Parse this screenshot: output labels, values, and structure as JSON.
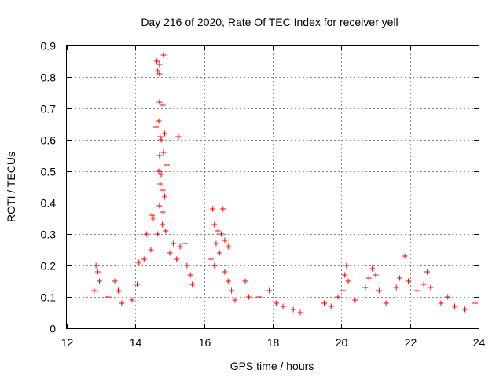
{
  "chart_data": {
    "type": "scatter",
    "title": "Day 216 of 2020, Rate Of TEC Index for receiver yell",
    "xlabel": "GPS time / hours",
    "ylabel": "ROTI / TECUs",
    "xlim": [
      12,
      24
    ],
    "ylim": [
      0,
      0.9
    ],
    "xticks": [
      "12",
      "14",
      "16",
      "18",
      "20",
      "22",
      "24"
    ],
    "yticks": [
      "0",
      "0.1",
      "0.2",
      "0.3",
      "0.4",
      "0.5",
      "0.6",
      "0.7",
      "0.8",
      "0.9"
    ],
    "grid": true,
    "marker": "+",
    "color": "#ff0000",
    "series": [
      {
        "name": "ROTI",
        "points": [
          [
            14.62,
            0.85
          ],
          [
            14.7,
            0.84
          ],
          [
            14.82,
            0.87
          ],
          [
            14.65,
            0.82
          ],
          [
            14.7,
            0.81
          ],
          [
            14.7,
            0.72
          ],
          [
            14.8,
            0.71
          ],
          [
            14.6,
            0.64
          ],
          [
            14.68,
            0.66
          ],
          [
            14.72,
            0.61
          ],
          [
            14.85,
            0.62
          ],
          [
            14.75,
            0.6
          ],
          [
            15.25,
            0.61
          ],
          [
            14.7,
            0.55
          ],
          [
            14.82,
            0.56
          ],
          [
            14.68,
            0.5
          ],
          [
            14.75,
            0.49
          ],
          [
            14.92,
            0.52
          ],
          [
            14.72,
            0.46
          ],
          [
            14.8,
            0.44
          ],
          [
            14.85,
            0.42
          ],
          [
            14.7,
            0.39
          ],
          [
            14.8,
            0.37
          ],
          [
            14.48,
            0.36
          ],
          [
            14.52,
            0.35
          ],
          [
            14.78,
            0.33
          ],
          [
            14.88,
            0.31
          ],
          [
            14.32,
            0.3
          ],
          [
            14.65,
            0.3
          ],
          [
            15.1,
            0.27
          ],
          [
            15.3,
            0.26
          ],
          [
            15.45,
            0.27
          ],
          [
            14.25,
            0.22
          ],
          [
            14.1,
            0.21
          ],
          [
            14.45,
            0.25
          ],
          [
            15.0,
            0.24
          ],
          [
            15.2,
            0.22
          ],
          [
            15.5,
            0.2
          ],
          [
            15.6,
            0.17
          ],
          [
            15.65,
            0.14
          ],
          [
            16.25,
            0.38
          ],
          [
            16.55,
            0.38
          ],
          [
            16.3,
            0.33
          ],
          [
            16.4,
            0.31
          ],
          [
            16.5,
            0.3
          ],
          [
            16.6,
            0.28
          ],
          [
            16.7,
            0.26
          ],
          [
            16.35,
            0.27
          ],
          [
            16.45,
            0.24
          ],
          [
            16.2,
            0.22
          ],
          [
            16.3,
            0.2
          ],
          [
            16.6,
            0.18
          ],
          [
            16.7,
            0.15
          ],
          [
            16.8,
            0.12
          ],
          [
            16.9,
            0.09
          ],
          [
            12.85,
            0.2
          ],
          [
            12.9,
            0.18
          ],
          [
            12.95,
            0.15
          ],
          [
            12.8,
            0.12
          ],
          [
            13.4,
            0.15
          ],
          [
            13.5,
            0.12
          ],
          [
            13.2,
            0.1
          ],
          [
            13.6,
            0.08
          ],
          [
            13.9,
            0.09
          ],
          [
            14.05,
            0.14
          ],
          [
            17.2,
            0.15
          ],
          [
            17.3,
            0.1
          ],
          [
            17.6,
            0.1
          ],
          [
            17.9,
            0.12
          ],
          [
            18.1,
            0.08
          ],
          [
            18.3,
            0.07
          ],
          [
            18.6,
            0.06
          ],
          [
            18.8,
            0.05
          ],
          [
            19.5,
            0.08
          ],
          [
            19.7,
            0.07
          ],
          [
            19.9,
            0.1
          ],
          [
            20.05,
            0.12
          ],
          [
            20.1,
            0.17
          ],
          [
            20.15,
            0.2
          ],
          [
            20.2,
            0.15
          ],
          [
            20.4,
            0.09
          ],
          [
            20.7,
            0.13
          ],
          [
            20.8,
            0.16
          ],
          [
            20.9,
            0.19
          ],
          [
            21.0,
            0.17
          ],
          [
            21.1,
            0.12
          ],
          [
            21.3,
            0.08
          ],
          [
            21.6,
            0.13
          ],
          [
            21.7,
            0.16
          ],
          [
            21.85,
            0.23
          ],
          [
            21.95,
            0.15
          ],
          [
            22.2,
            0.12
          ],
          [
            22.4,
            0.14
          ],
          [
            22.5,
            0.18
          ],
          [
            22.6,
            0.13
          ],
          [
            22.9,
            0.08
          ],
          [
            23.1,
            0.1
          ],
          [
            23.3,
            0.07
          ],
          [
            23.6,
            0.06
          ],
          [
            23.9,
            0.08
          ]
        ]
      }
    ]
  }
}
